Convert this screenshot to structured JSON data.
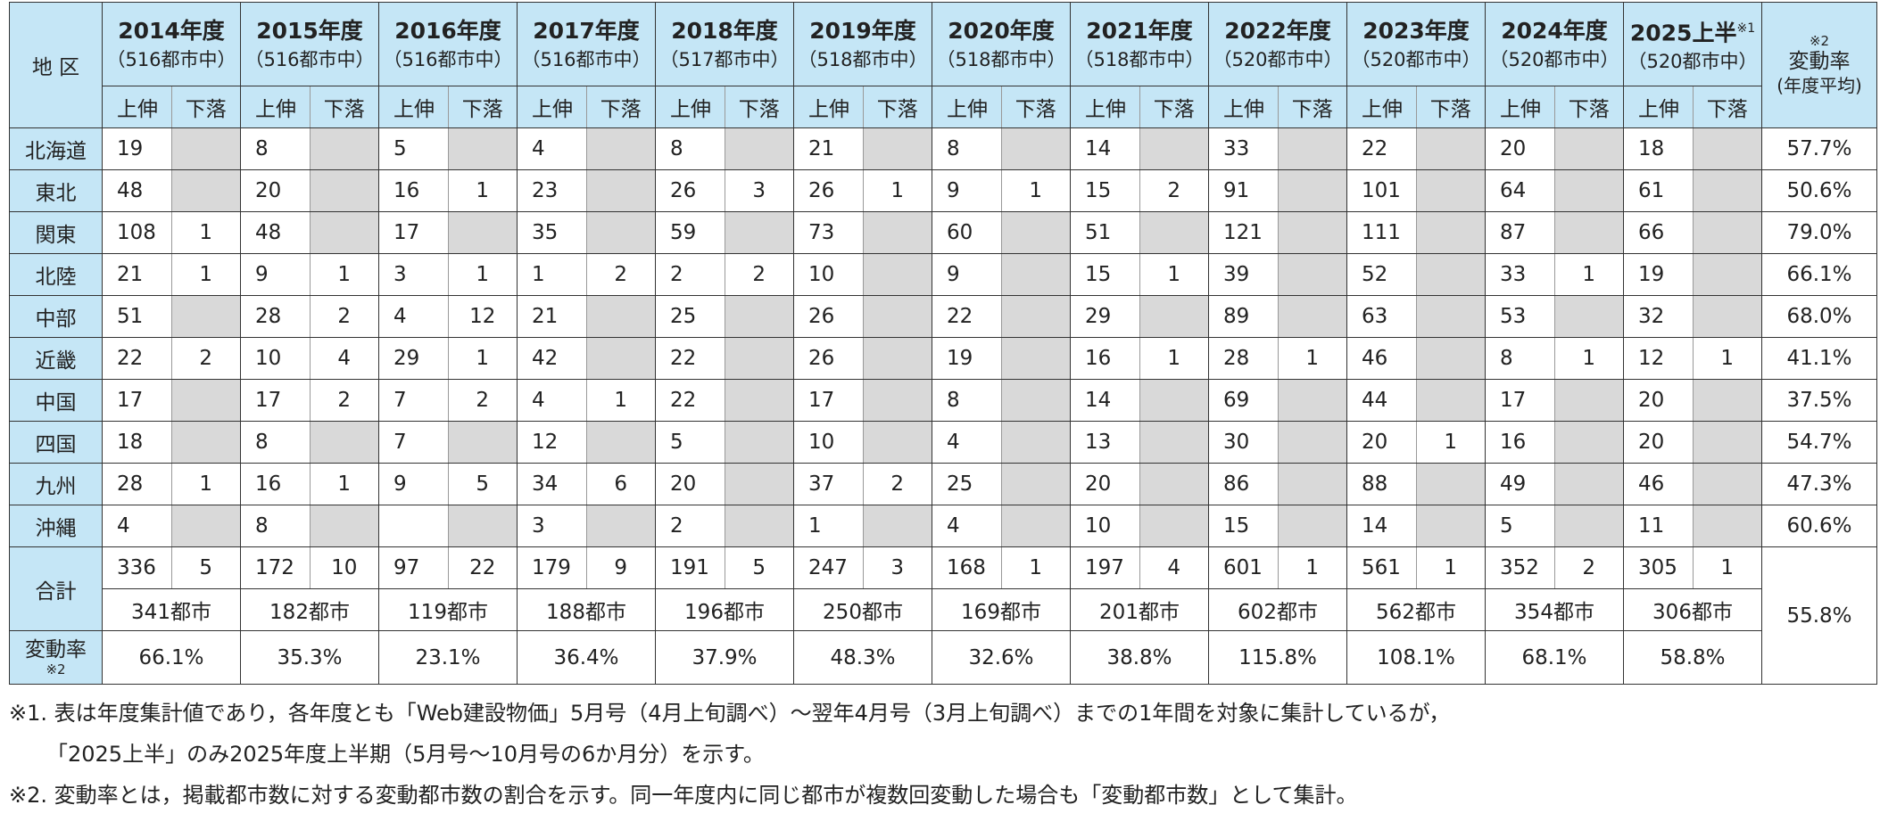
{
  "header": {
    "region": "地 区",
    "years": [
      {
        "year": "2014年度",
        "cities": "（516都市中）",
        "up": "上伸",
        "down": "下落"
      },
      {
        "year": "2015年度",
        "cities": "（516都市中）",
        "up": "上伸",
        "down": "下落"
      },
      {
        "year": "2016年度",
        "cities": "（516都市中）",
        "up": "上伸",
        "down": "下落"
      },
      {
        "year": "2017年度",
        "cities": "（516都市中）",
        "up": "上伸",
        "down": "下落"
      },
      {
        "year": "2018年度",
        "cities": "（517都市中）",
        "up": "上伸",
        "down": "下落"
      },
      {
        "year": "2019年度",
        "cities": "（518都市中）",
        "up": "上伸",
        "down": "下落"
      },
      {
        "year": "2020年度",
        "cities": "（518都市中）",
        "up": "上伸",
        "down": "下落"
      },
      {
        "year": "2021年度",
        "cities": "（518都市中）",
        "up": "上伸",
        "down": "下落"
      },
      {
        "year": "2022年度",
        "cities": "（520都市中）",
        "up": "上伸",
        "down": "下落"
      },
      {
        "year": "2023年度",
        "cities": "（520都市中）",
        "up": "上伸",
        "down": "下落"
      },
      {
        "year": "2024年度",
        "cities": "（520都市中）",
        "up": "上伸",
        "down": "下落"
      },
      {
        "year": "2025上半",
        "note_mark": "※1",
        "cities": "（520都市中）",
        "up": "上伸",
        "down": "下落"
      }
    ],
    "rate": {
      "note_mark": "※2",
      "label": "変動率",
      "sub": "(年度平均)"
    }
  },
  "rows": [
    {
      "region": "北海道",
      "values": [
        [
          19,
          null
        ],
        [
          8,
          null
        ],
        [
          5,
          null
        ],
        [
          4,
          null
        ],
        [
          8,
          null
        ],
        [
          21,
          null
        ],
        [
          8,
          null
        ],
        [
          14,
          null
        ],
        [
          33,
          null
        ],
        [
          22,
          null
        ],
        [
          20,
          null
        ],
        [
          18,
          null
        ]
      ],
      "rate": "57.7%"
    },
    {
      "region": "東北",
      "values": [
        [
          48,
          null
        ],
        [
          20,
          null
        ],
        [
          16,
          1
        ],
        [
          23,
          null
        ],
        [
          26,
          3
        ],
        [
          26,
          1
        ],
        [
          9,
          1
        ],
        [
          15,
          2
        ],
        [
          91,
          null
        ],
        [
          101,
          null
        ],
        [
          64,
          null
        ],
        [
          61,
          null
        ]
      ],
      "rate": "50.6%"
    },
    {
      "region": "関東",
      "values": [
        [
          108,
          1
        ],
        [
          48,
          null
        ],
        [
          17,
          null
        ],
        [
          35,
          null
        ],
        [
          59,
          null
        ],
        [
          73,
          null
        ],
        [
          60,
          null
        ],
        [
          51,
          null
        ],
        [
          121,
          null
        ],
        [
          111,
          null
        ],
        [
          87,
          null
        ],
        [
          66,
          null
        ]
      ],
      "rate": "79.0%"
    },
    {
      "region": "北陸",
      "values": [
        [
          21,
          1
        ],
        [
          9,
          1
        ],
        [
          3,
          1
        ],
        [
          1,
          2
        ],
        [
          2,
          2
        ],
        [
          10,
          null
        ],
        [
          9,
          null
        ],
        [
          15,
          1
        ],
        [
          39,
          null
        ],
        [
          52,
          null
        ],
        [
          33,
          1
        ],
        [
          19,
          null
        ]
      ],
      "rate": "66.1%"
    },
    {
      "region": "中部",
      "values": [
        [
          51,
          null
        ],
        [
          28,
          2
        ],
        [
          4,
          12
        ],
        [
          21,
          null
        ],
        [
          25,
          null
        ],
        [
          26,
          null
        ],
        [
          22,
          null
        ],
        [
          29,
          null
        ],
        [
          89,
          null
        ],
        [
          63,
          null
        ],
        [
          53,
          null
        ],
        [
          32,
          null
        ]
      ],
      "rate": "68.0%"
    },
    {
      "region": "近畿",
      "values": [
        [
          22,
          2
        ],
        [
          10,
          4
        ],
        [
          29,
          1
        ],
        [
          42,
          null
        ],
        [
          22,
          null
        ],
        [
          26,
          null
        ],
        [
          19,
          null
        ],
        [
          16,
          1
        ],
        [
          28,
          1
        ],
        [
          46,
          null
        ],
        [
          8,
          1
        ],
        [
          12,
          1
        ]
      ],
      "rate": "41.1%"
    },
    {
      "region": "中国",
      "values": [
        [
          17,
          null
        ],
        [
          17,
          2
        ],
        [
          7,
          2
        ],
        [
          4,
          1
        ],
        [
          22,
          null
        ],
        [
          17,
          null
        ],
        [
          8,
          null
        ],
        [
          14,
          null
        ],
        [
          69,
          null
        ],
        [
          44,
          null
        ],
        [
          17,
          null
        ],
        [
          20,
          null
        ]
      ],
      "rate": "37.5%"
    },
    {
      "region": "四国",
      "values": [
        [
          18,
          null
        ],
        [
          8,
          null
        ],
        [
          7,
          null
        ],
        [
          12,
          null
        ],
        [
          5,
          null
        ],
        [
          10,
          null
        ],
        [
          4,
          null
        ],
        [
          13,
          null
        ],
        [
          30,
          null
        ],
        [
          20,
          1
        ],
        [
          16,
          null
        ],
        [
          20,
          null
        ]
      ],
      "rate": "54.7%"
    },
    {
      "region": "九州",
      "values": [
        [
          28,
          1
        ],
        [
          16,
          1
        ],
        [
          9,
          5
        ],
        [
          34,
          6
        ],
        [
          20,
          null
        ],
        [
          37,
          2
        ],
        [
          25,
          null
        ],
        [
          20,
          null
        ],
        [
          86,
          null
        ],
        [
          88,
          null
        ],
        [
          49,
          null
        ],
        [
          46,
          null
        ]
      ],
      "rate": "47.3%"
    },
    {
      "region": "沖縄",
      "values": [
        [
          4,
          null
        ],
        [
          8,
          null
        ],
        [
          null,
          null
        ],
        [
          3,
          null
        ],
        [
          2,
          null
        ],
        [
          1,
          null
        ],
        [
          4,
          null
        ],
        [
          10,
          null
        ],
        [
          15,
          null
        ],
        [
          14,
          null
        ],
        [
          5,
          null
        ],
        [
          11,
          null
        ]
      ],
      "rate": "60.6%"
    }
  ],
  "total": {
    "label": "合計",
    "values": [
      [
        336,
        5
      ],
      [
        172,
        10
      ],
      [
        97,
        22
      ],
      [
        179,
        9
      ],
      [
        191,
        5
      ],
      [
        247,
        3
      ],
      [
        168,
        1
      ],
      [
        197,
        4
      ],
      [
        601,
        1
      ],
      [
        561,
        1
      ],
      [
        352,
        2
      ],
      [
        305,
        1
      ]
    ],
    "cities": [
      "341都市",
      "182都市",
      "119都市",
      "188都市",
      "196都市",
      "250都市",
      "169都市",
      "201都市",
      "602都市",
      "562都市",
      "354都市",
      "306都市"
    ],
    "rate": "55.8%"
  },
  "change": {
    "label": "変動率",
    "note_mark": "※2",
    "values": [
      "66.1%",
      "35.3%",
      "23.1%",
      "36.4%",
      "37.9%",
      "48.3%",
      "32.6%",
      "38.8%",
      "115.8%",
      "108.1%",
      "68.1%",
      "58.8%"
    ]
  },
  "notes": [
    "※1. 表は年度集計値であり，各年度とも「Web建設物価」5月号（4月上旬調べ）～翌年4月号（3月上旬調べ）までの1年間を対象に集計しているが，",
    "「2025上半」のみ2025年度上半期（5月号～10月号の6か月分）を示す。",
    "※2. 変動率とは，掲載都市数に対する変動都市数の割合を示す。同一年度内に同じ都市が複数回変動した場合も「変動都市数」として集計。"
  ]
}
